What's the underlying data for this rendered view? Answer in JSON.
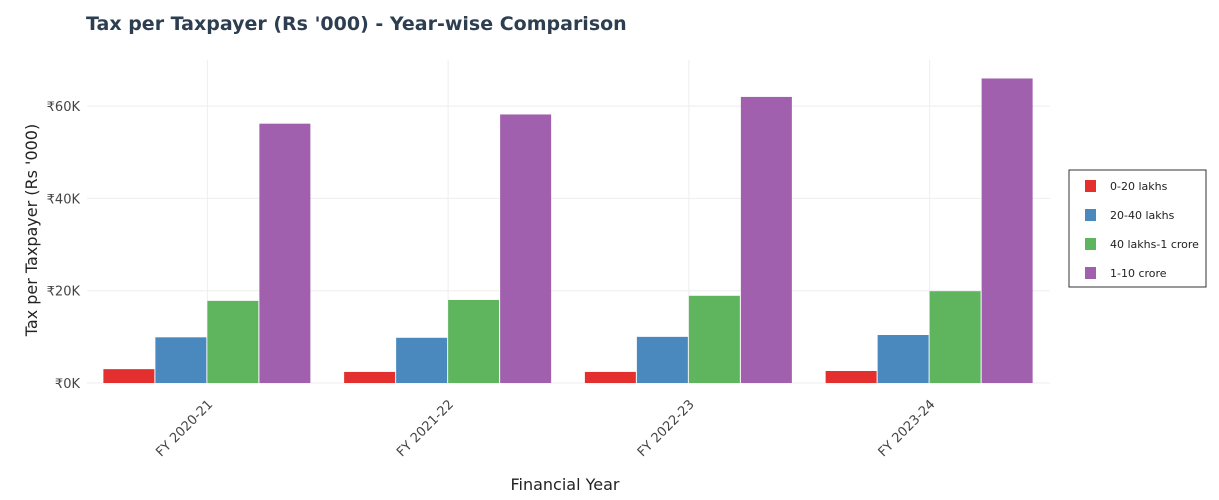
{
  "chart_data": {
    "type": "bar",
    "title": "Tax per Taxpayer (Rs '000) - Year-wise Comparison",
    "xlabel": "Financial Year",
    "ylabel": "Tax per Taxpayer (Rs '000)",
    "categories": [
      "FY 2020-21",
      "FY 2021-22",
      "FY 2022-23",
      "FY 2023-24"
    ],
    "ylim": [
      0,
      70000
    ],
    "yticks": [
      0,
      20000,
      40000,
      60000
    ],
    "ytick_labels": [
      "₹0K",
      "₹20K",
      "₹40K",
      "₹60K"
    ],
    "grid": true,
    "legend_position": "right",
    "series": [
      {
        "name": "0-20 lakhs",
        "color": "#e3302f",
        "values": [
          3000,
          2400,
          2400,
          2600
        ]
      },
      {
        "name": "20-40 lakhs",
        "color": "#4a89be",
        "values": [
          9900,
          9800,
          10000,
          10400
        ]
      },
      {
        "name": "40 lakhs-1 crore",
        "color": "#5fb55e",
        "values": [
          17800,
          18000,
          18900,
          19900
        ]
      },
      {
        "name": "1-10 crore",
        "color": "#a160ad",
        "values": [
          56200,
          58200,
          62000,
          66000
        ]
      }
    ]
  }
}
